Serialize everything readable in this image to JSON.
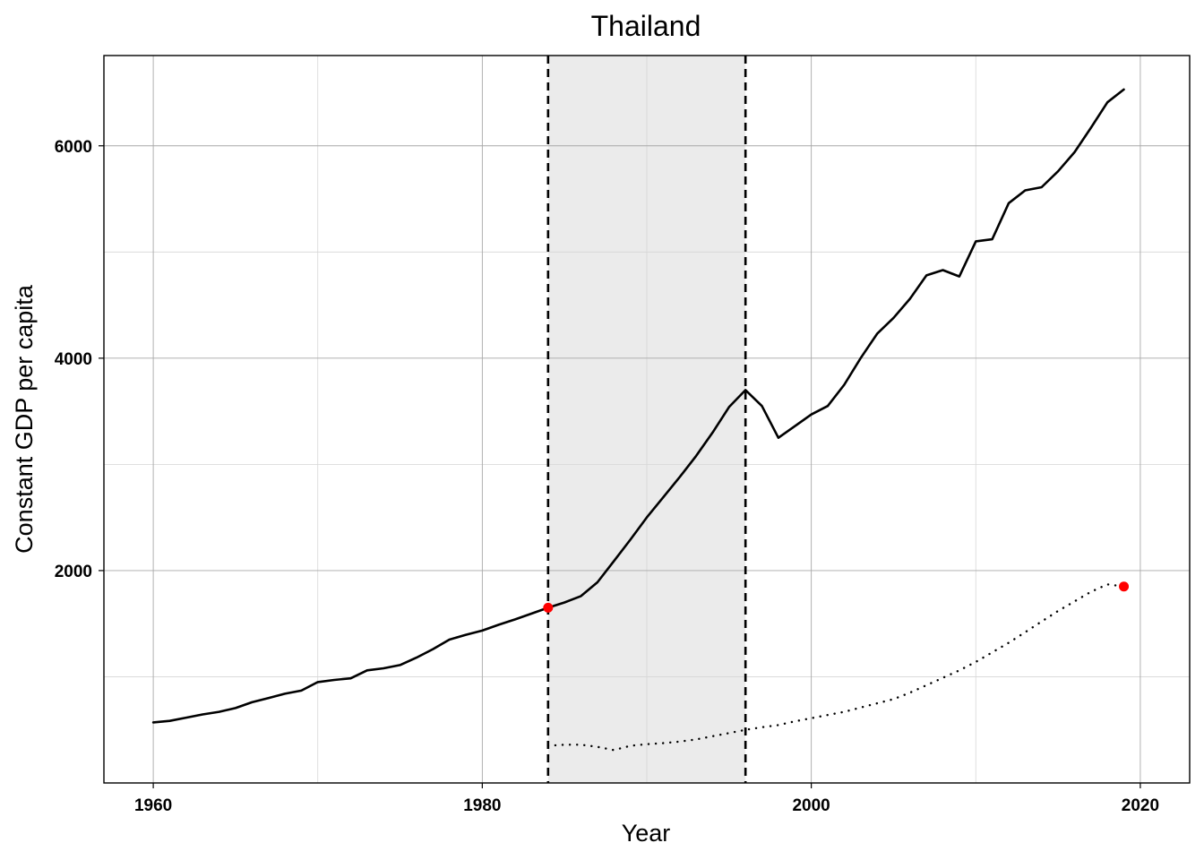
{
  "chart_data": {
    "type": "line",
    "title": "Thailand",
    "xlabel": "Year",
    "ylabel": "Constant GDP per capita",
    "xlim": [
      1957,
      2023
    ],
    "ylim": [
      0,
      6850
    ],
    "xticks": [
      1960,
      1980,
      2000,
      2020
    ],
    "yticks": [
      2000,
      4000,
      6000
    ],
    "ygrid_minor": [
      1000,
      3000,
      5000
    ],
    "xgrid_minor": [
      1970,
      1990,
      2010
    ],
    "grid": true,
    "legend": "none",
    "shaded_period": [
      1984,
      1996
    ],
    "vertical_lines": [
      1984,
      1996
    ],
    "colors": {
      "line": "#000000",
      "marker": "#ff0000",
      "shade": "#ebebeb"
    },
    "series": [
      {
        "style": "solid",
        "x": [
          1960,
          1961,
          1962,
          1963,
          1964,
          1965,
          1966,
          1967,
          1968,
          1969,
          1970,
          1971,
          1972,
          1973,
          1974,
          1975,
          1976,
          1977,
          1978,
          1979,
          1980,
          1981,
          1982,
          1983,
          1984,
          1985,
          1986,
          1987,
          1988,
          1989,
          1990,
          1991,
          1992,
          1993,
          1994,
          1995,
          1996,
          1997,
          1998,
          1999,
          2000,
          2001,
          2002,
          2003,
          2004,
          2005,
          2006,
          2007,
          2008,
          2009,
          2010,
          2011,
          2012,
          2013,
          2014,
          2015,
          2016,
          2017,
          2018,
          2019
        ],
        "y": [
          570,
          585,
          615,
          645,
          670,
          705,
          760,
          800,
          840,
          870,
          950,
          970,
          985,
          1060,
          1080,
          1110,
          1180,
          1260,
          1350,
          1395,
          1435,
          1490,
          1540,
          1595,
          1650,
          1700,
          1760,
          1890,
          2090,
          2290,
          2500,
          2690,
          2880,
          3080,
          3300,
          3540,
          3700,
          3550,
          3250,
          3360,
          3470,
          3550,
          3750,
          4000,
          4230,
          4380,
          4560,
          4780,
          4830,
          4770,
          5100,
          5120,
          5460,
          5580,
          5610,
          5760,
          5940,
          6170,
          6410,
          6530
        ]
      },
      {
        "style": "dotted",
        "x": [
          1984,
          1985,
          1986,
          1987,
          1988,
          1989,
          1990,
          1991,
          1992,
          1993,
          1994,
          1995,
          1996,
          1997,
          1998,
          1999,
          2000,
          2001,
          2002,
          2003,
          2004,
          2005,
          2006,
          2007,
          2008,
          2009,
          2010,
          2011,
          2012,
          2013,
          2014,
          2015,
          2016,
          2017,
          2018,
          2019
        ],
        "y": [
          350,
          360,
          360,
          340,
          310,
          350,
          365,
          375,
          390,
          410,
          440,
          470,
          500,
          525,
          545,
          580,
          610,
          640,
          670,
          710,
          750,
          790,
          850,
          920,
          990,
          1060,
          1140,
          1230,
          1320,
          1420,
          1520,
          1620,
          1710,
          1800,
          1870,
          1850
        ]
      }
    ],
    "points": [
      {
        "x": 1984,
        "y": 1650
      },
      {
        "x": 2019,
        "y": 1850
      }
    ]
  }
}
